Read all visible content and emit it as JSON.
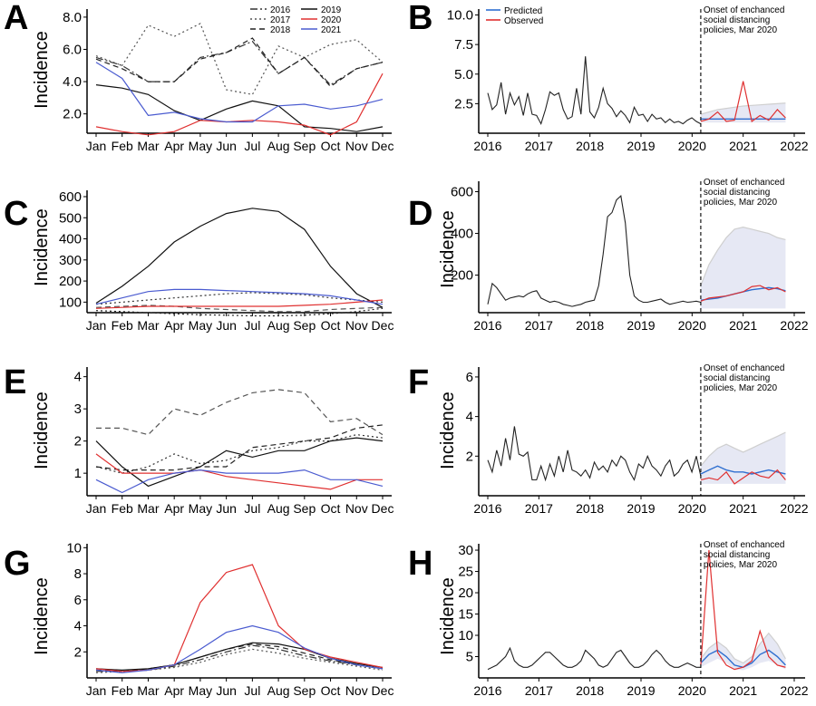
{
  "figure": {
    "panels": [
      {
        "letter": "A",
        "ylabel": "Incidence"
      },
      {
        "letter": "B",
        "ylabel": ""
      },
      {
        "letter": "C",
        "ylabel": "Incidence"
      },
      {
        "letter": "D",
        "ylabel": "Incidence"
      },
      {
        "letter": "E",
        "ylabel": "Incidence"
      },
      {
        "letter": "F",
        "ylabel": "Incidence"
      },
      {
        "letter": "G",
        "ylabel": "Incidence"
      },
      {
        "letter": "H",
        "ylabel": "Incidence"
      }
    ]
  },
  "colors": {
    "2016": "#333333",
    "2017": "#555555",
    "2018": "#222222",
    "2019": "#111111",
    "2020": "#e03030",
    "2021": "#4a5bd0",
    "predicted": "#2f6fd0",
    "observed": "#e03030",
    "history": "#222222",
    "ci_band": "#c8cbe6",
    "upper_bound": "#cfcfcf"
  },
  "chart_data": [
    {
      "panel": "A",
      "type": "line",
      "categories": [
        "Jan",
        "Feb",
        "Mar",
        "Apr",
        "May",
        "Jun",
        "Jul",
        "Aug",
        "Sep",
        "Oct",
        "Nov",
        "Dec"
      ],
      "ylim": [
        0.8,
        8.5
      ],
      "yticks": [
        2.0,
        4.0,
        6.0,
        8.0
      ],
      "ytick_labels": [
        "2.0",
        "4.0",
        "6.0",
        "8.0"
      ],
      "legend": {
        "placement": "top-right",
        "entries": [
          "2016",
          "2017",
          "2018",
          "2019",
          "2020",
          "2021"
        ]
      },
      "series": [
        {
          "name": "2016",
          "style": "dashdot",
          "values": [
            5.5,
            5.0,
            4.0,
            4.0,
            5.5,
            5.8,
            6.5,
            4.5,
            5.5,
            3.8,
            4.8,
            5.2
          ]
        },
        {
          "name": "2017",
          "style": "dotted",
          "values": [
            5.6,
            5.0,
            7.5,
            6.8,
            7.6,
            3.5,
            3.2,
            6.2,
            5.5,
            6.3,
            6.6,
            5.2
          ]
        },
        {
          "name": "2018",
          "style": "dashed",
          "values": [
            5.4,
            4.8,
            4.0,
            4.0,
            5.4,
            5.8,
            6.7,
            4.5,
            5.5,
            3.7,
            4.8,
            5.2
          ]
        },
        {
          "name": "2019",
          "style": "solid",
          "values": [
            3.8,
            3.6,
            3.2,
            2.2,
            1.6,
            2.3,
            2.8,
            2.5,
            1.2,
            1.1,
            0.9,
            1.2
          ]
        },
        {
          "name": "2020",
          "style": "solid",
          "values": [
            1.2,
            0.9,
            0.7,
            0.9,
            1.6,
            1.5,
            1.6,
            1.5,
            1.3,
            0.7,
            1.5,
            4.5
          ]
        },
        {
          "name": "2021",
          "style": "solid",
          "values": [
            5.2,
            4.2,
            1.9,
            2.1,
            1.7,
            1.5,
            1.5,
            2.5,
            2.6,
            2.3,
            2.5,
            2.9
          ]
        }
      ]
    },
    {
      "panel": "B",
      "type": "line",
      "xlim": [
        2016,
        2022
      ],
      "xticks": [
        2016,
        2017,
        2018,
        2019,
        2020,
        2021,
        2022
      ],
      "ylim": [
        0,
        10.5
      ],
      "yticks": [
        2.5,
        5.0,
        7.5,
        10.0
      ],
      "ytick_labels": [
        "2.5",
        "5.0",
        "7.5",
        "10.0"
      ],
      "legend": {
        "placement": "top-left",
        "entries": [
          "Predicted",
          "Observed"
        ]
      },
      "annotation": {
        "x": 2020.17,
        "text": [
          "Onset of enchanced",
          "social distancing",
          "policies, Mar 2020"
        ]
      },
      "history": [
        3.4,
        2.0,
        2.4,
        4.3,
        1.6,
        3.4,
        2.4,
        3.1,
        1.5,
        3.4,
        1.6,
        1.5,
        0.8,
        2.0,
        3.5,
        3.2,
        3.4,
        2.0,
        1.2,
        1.4,
        3.8,
        1.6,
        6.5,
        1.8,
        1.3,
        2.2,
        3.8,
        2.5,
        2.1,
        1.4,
        1.9,
        1.5,
        0.9,
        2.2,
        1.5,
        1.6,
        1.0,
        1.6,
        1.2,
        1.3,
        0.9,
        1.2,
        0.9,
        1.0,
        0.8,
        1.1,
        1.3,
        1.0,
        0.8
      ],
      "forecast_x": [
        2020.17,
        2020.33,
        2020.5,
        2020.67,
        2020.83,
        2021.0,
        2021.17,
        2021.33,
        2021.5,
        2021.67,
        2021.83
      ],
      "observed": [
        1.0,
        1.2,
        1.8,
        1.0,
        1.1,
        4.4,
        1.0,
        1.5,
        1.1,
        2.0,
        1.3
      ],
      "predicted": [
        1.2,
        1.2,
        1.2,
        1.2,
        1.2,
        1.2,
        1.2,
        1.2,
        1.2,
        1.2,
        1.2
      ],
      "upper": [
        1.6,
        1.8,
        2.0,
        2.1,
        2.2,
        2.3,
        2.35,
        2.4,
        2.45,
        2.5,
        2.55
      ],
      "lower": [
        0.9,
        0.9,
        0.9,
        0.9,
        0.9,
        0.9,
        0.9,
        0.9,
        0.9,
        0.9,
        0.9
      ]
    },
    {
      "panel": "C",
      "type": "line",
      "categories": [
        "Jan",
        "Feb",
        "Mar",
        "Apr",
        "May",
        "Jun",
        "Jul",
        "Aug",
        "Sep",
        "Oct",
        "Nov",
        "Dec"
      ],
      "ylim": [
        50,
        630
      ],
      "yticks": [
        100,
        200,
        300,
        400,
        500,
        600
      ],
      "ytick_labels": [
        "100",
        "200",
        "300",
        "400",
        "500",
        "600"
      ],
      "series": [
        {
          "name": "2016",
          "style": "dotted",
          "values": [
            90,
            100,
            110,
            120,
            130,
            140,
            145,
            140,
            135,
            120,
            110,
            100
          ]
        },
        {
          "name": "2017",
          "style": "dashed",
          "values": [
            75,
            80,
            85,
            80,
            70,
            65,
            60,
            55,
            55,
            65,
            70,
            75
          ]
        },
        {
          "name": "2018",
          "style": "dotted",
          "values": [
            60,
            55,
            50,
            45,
            40,
            38,
            35,
            35,
            38,
            45,
            55,
            70
          ]
        },
        {
          "name": "2019",
          "style": "solid",
          "values": [
            95,
            175,
            270,
            385,
            460,
            520,
            545,
            530,
            445,
            270,
            140,
            75
          ]
        },
        {
          "name": "2020",
          "style": "solid",
          "values": [
            70,
            75,
            80,
            80,
            80,
            80,
            80,
            80,
            85,
            90,
            100,
            110
          ]
        },
        {
          "name": "2021",
          "style": "solid",
          "values": [
            90,
            120,
            150,
            160,
            160,
            155,
            150,
            145,
            140,
            130,
            110,
            90
          ]
        }
      ]
    },
    {
      "panel": "D",
      "type": "line",
      "xlim": [
        2016,
        2022
      ],
      "xticks": [
        2016,
        2017,
        2018,
        2019,
        2020,
        2021,
        2022
      ],
      "ylim": [
        20,
        650
      ],
      "yticks": [
        200,
        400,
        600
      ],
      "ytick_labels": [
        "200",
        "400",
        "600"
      ],
      "annotation": {
        "x": 2020.17,
        "text": [
          "Onset of enchanced",
          "social distancing",
          "policies, Mar 2020"
        ]
      },
      "history": [
        60,
        160,
        140,
        110,
        80,
        90,
        95,
        100,
        95,
        110,
        120,
        125,
        90,
        80,
        70,
        75,
        70,
        60,
        55,
        50,
        55,
        60,
        70,
        75,
        80,
        150,
        300,
        480,
        500,
        560,
        580,
        450,
        200,
        100,
        80,
        70,
        70,
        75,
        80,
        85,
        70,
        60,
        65,
        70,
        75,
        70,
        72,
        75,
        70
      ],
      "forecast_x": [
        2020.17,
        2020.33,
        2020.5,
        2020.67,
        2020.83,
        2021.0,
        2021.17,
        2021.33,
        2021.5,
        2021.67,
        2021.83
      ],
      "observed": [
        75,
        90,
        95,
        100,
        110,
        120,
        145,
        150,
        130,
        140,
        120
      ],
      "predicted": [
        80,
        85,
        90,
        100,
        110,
        120,
        130,
        135,
        140,
        135,
        125
      ],
      "upper": [
        150,
        250,
        320,
        380,
        420,
        430,
        420,
        410,
        400,
        380,
        370
      ],
      "lower": [
        40,
        40,
        40,
        40,
        40,
        40,
        40,
        40,
        40,
        40,
        40
      ]
    },
    {
      "panel": "E",
      "type": "line",
      "categories": [
        "Jan",
        "Feb",
        "Mar",
        "Apr",
        "May",
        "Jun",
        "Jul",
        "Aug",
        "Sep",
        "Oct",
        "Nov",
        "Dec"
      ],
      "ylim": [
        0.3,
        4.3
      ],
      "yticks": [
        1,
        2,
        3,
        4
      ],
      "ytick_labels": [
        "1",
        "2",
        "3",
        "4"
      ],
      "series": [
        {
          "name": "2016",
          "style": "dotted",
          "values": [
            1.2,
            1.0,
            1.2,
            1.6,
            1.3,
            1.4,
            1.7,
            1.8,
            2.0,
            2.0,
            2.2,
            2.1
          ]
        },
        {
          "name": "2017",
          "style": "dashed",
          "values": [
            2.4,
            2.4,
            2.2,
            3.0,
            2.8,
            3.2,
            3.5,
            3.6,
            3.5,
            2.6,
            2.7,
            2.2
          ]
        },
        {
          "name": "2018",
          "style": "dashed",
          "values": [
            1.2,
            1.1,
            1.1,
            1.1,
            1.2,
            1.2,
            1.8,
            1.9,
            2.0,
            2.1,
            2.4,
            2.5
          ]
        },
        {
          "name": "2019",
          "style": "solid",
          "values": [
            2.0,
            1.2,
            0.6,
            0.9,
            1.2,
            1.7,
            1.5,
            1.7,
            1.7,
            2.0,
            2.1,
            2.0
          ]
        },
        {
          "name": "2020",
          "style": "solid",
          "values": [
            1.6,
            1.0,
            1.0,
            1.0,
            1.1,
            0.9,
            0.8,
            0.7,
            0.6,
            0.5,
            0.8,
            0.8
          ]
        },
        {
          "name": "2021",
          "style": "solid",
          "values": [
            0.8,
            0.4,
            0.8,
            1.0,
            1.1,
            1.0,
            1.0,
            1.0,
            1.1,
            0.8,
            0.8,
            0.6
          ]
        }
      ]
    },
    {
      "panel": "F",
      "type": "line",
      "xlim": [
        2016,
        2022
      ],
      "xticks": [
        2016,
        2017,
        2018,
        2019,
        2020,
        2021,
        2022
      ],
      "ylim": [
        0,
        6.5
      ],
      "yticks": [
        2,
        4,
        6
      ],
      "ytick_labels": [
        "2",
        "4",
        "6"
      ],
      "annotation": {
        "x": 2020.17,
        "text": [
          "Onset of enchanced",
          "social distancing",
          "policies, Mar 2020"
        ]
      },
      "history": [
        1.8,
        1.2,
        2.3,
        1.5,
        2.9,
        1.8,
        3.5,
        2.1,
        2.0,
        2.2,
        0.8,
        0.8,
        1.5,
        0.8,
        1.6,
        1.0,
        2.0,
        1.2,
        2.3,
        1.3,
        1.2,
        1.0,
        1.3,
        0.9,
        1.7,
        1.3,
        1.5,
        1.2,
        1.8,
        1.5,
        2.0,
        1.8,
        1.2,
        0.8,
        1.6,
        1.4,
        2.0,
        1.5,
        1.3,
        1.0,
        1.5,
        1.8,
        1.0,
        1.2,
        1.6,
        1.8,
        1.2,
        2.0,
        1.0
      ],
      "forecast_x": [
        2020.17,
        2020.33,
        2020.5,
        2020.67,
        2020.83,
        2021.0,
        2021.17,
        2021.33,
        2021.5,
        2021.67,
        2021.83
      ],
      "observed": [
        0.8,
        0.9,
        0.8,
        1.2,
        0.6,
        0.9,
        1.2,
        1.0,
        0.9,
        1.3,
        0.8
      ],
      "predicted": [
        1.1,
        1.3,
        1.5,
        1.3,
        1.2,
        1.2,
        1.1,
        1.2,
        1.3,
        1.2,
        1.1
      ],
      "upper": [
        1.5,
        2.0,
        2.4,
        2.6,
        2.4,
        2.2,
        2.4,
        2.6,
        2.8,
        3.0,
        3.2
      ],
      "lower": [
        0.6,
        0.6,
        0.6,
        0.6,
        0.6,
        0.6,
        0.6,
        0.6,
        0.6,
        0.6,
        0.6
      ]
    },
    {
      "panel": "G",
      "type": "line",
      "categories": [
        "Jan",
        "Feb",
        "Mar",
        "Apr",
        "May",
        "Jun",
        "Jul",
        "Aug",
        "Sep",
        "Oct",
        "Nov",
        "Dec"
      ],
      "ylim": [
        0,
        10.3
      ],
      "yticks": [
        2,
        4,
        6,
        8,
        10
      ],
      "ytick_labels": [
        "2",
        "4",
        "6",
        "8",
        "10"
      ],
      "series": [
        {
          "name": "2016",
          "style": "dashdot",
          "values": [
            0.5,
            0.5,
            0.6,
            0.9,
            1.4,
            2.0,
            2.5,
            2.2,
            1.7,
            1.3,
            1.0,
            0.7
          ]
        },
        {
          "name": "2017",
          "style": "dotted",
          "values": [
            0.4,
            0.5,
            0.6,
            0.8,
            1.2,
            1.8,
            2.2,
            1.9,
            1.5,
            1.2,
            0.9,
            0.6
          ]
        },
        {
          "name": "2018",
          "style": "dashed",
          "values": [
            0.6,
            0.5,
            0.7,
            1.0,
            1.6,
            2.2,
            2.6,
            2.4,
            1.9,
            1.4,
            1.0,
            0.7
          ]
        },
        {
          "name": "2019",
          "style": "solid",
          "values": [
            0.7,
            0.6,
            0.7,
            1.0,
            1.6,
            2.2,
            2.7,
            2.6,
            2.2,
            1.5,
            1.1,
            0.8
          ]
        },
        {
          "name": "2020",
          "style": "solid",
          "values": [
            0.7,
            0.5,
            0.6,
            1.0,
            5.8,
            8.1,
            8.7,
            4.0,
            2.2,
            1.6,
            1.2,
            0.8
          ]
        },
        {
          "name": "2021",
          "style": "solid",
          "values": [
            0.6,
            0.4,
            0.6,
            1.0,
            2.2,
            3.5,
            4.0,
            3.5,
            2.3,
            1.5,
            1.0,
            0.7
          ]
        }
      ]
    },
    {
      "panel": "H",
      "type": "line",
      "xlim": [
        2016,
        2022
      ],
      "xticks": [
        2016,
        2017,
        2018,
        2019,
        2020,
        2021,
        2022
      ],
      "ylim": [
        0,
        31.5
      ],
      "yticks": [
        5,
        10,
        15,
        20,
        25,
        30
      ],
      "ytick_labels": [
        "5",
        "10",
        "15",
        "20",
        "25",
        "30"
      ],
      "annotation": {
        "x": 2020.17,
        "text": [
          "Onset of enchanced",
          "social distancing",
          "policies, Mar 2020"
        ]
      },
      "history": [
        2.0,
        2.5,
        3.0,
        4.0,
        5.0,
        7.0,
        4.0,
        3.0,
        2.5,
        2.5,
        3.0,
        4.0,
        5.0,
        6.0,
        6.0,
        5.0,
        4.0,
        3.0,
        2.5,
        2.5,
        3.0,
        4.0,
        6.5,
        5.5,
        4.5,
        3.0,
        2.5,
        3.0,
        4.5,
        6.0,
        6.5,
        5.0,
        3.5,
        2.5,
        2.5,
        3.0,
        4.0,
        5.5,
        6.5,
        5.5,
        4.0,
        3.0,
        2.5,
        2.5,
        3.0,
        3.5,
        3.0,
        2.5,
        2.5
      ],
      "forecast_x": [
        2020.17,
        2020.33,
        2020.5,
        2020.67,
        2020.83,
        2021.0,
        2021.17,
        2021.33,
        2021.5,
        2021.67,
        2021.83
      ],
      "observed": [
        3.0,
        30.0,
        6.0,
        3.0,
        2.0,
        2.5,
        4.0,
        11.0,
        5.0,
        3.0,
        2.5
      ],
      "predicted": [
        3.5,
        5.5,
        6.5,
        5.0,
        3.0,
        2.5,
        3.5,
        5.5,
        6.5,
        5.0,
        3.0
      ],
      "upper": [
        4.5,
        7.0,
        8.5,
        7.0,
        4.5,
        3.5,
        5.0,
        8.0,
        10.5,
        8.0,
        4.5
      ],
      "lower": [
        2.5,
        3.5,
        4.5,
        3.5,
        2.0,
        1.8,
        2.5,
        3.5,
        4.0,
        3.0,
        2.0
      ]
    }
  ]
}
